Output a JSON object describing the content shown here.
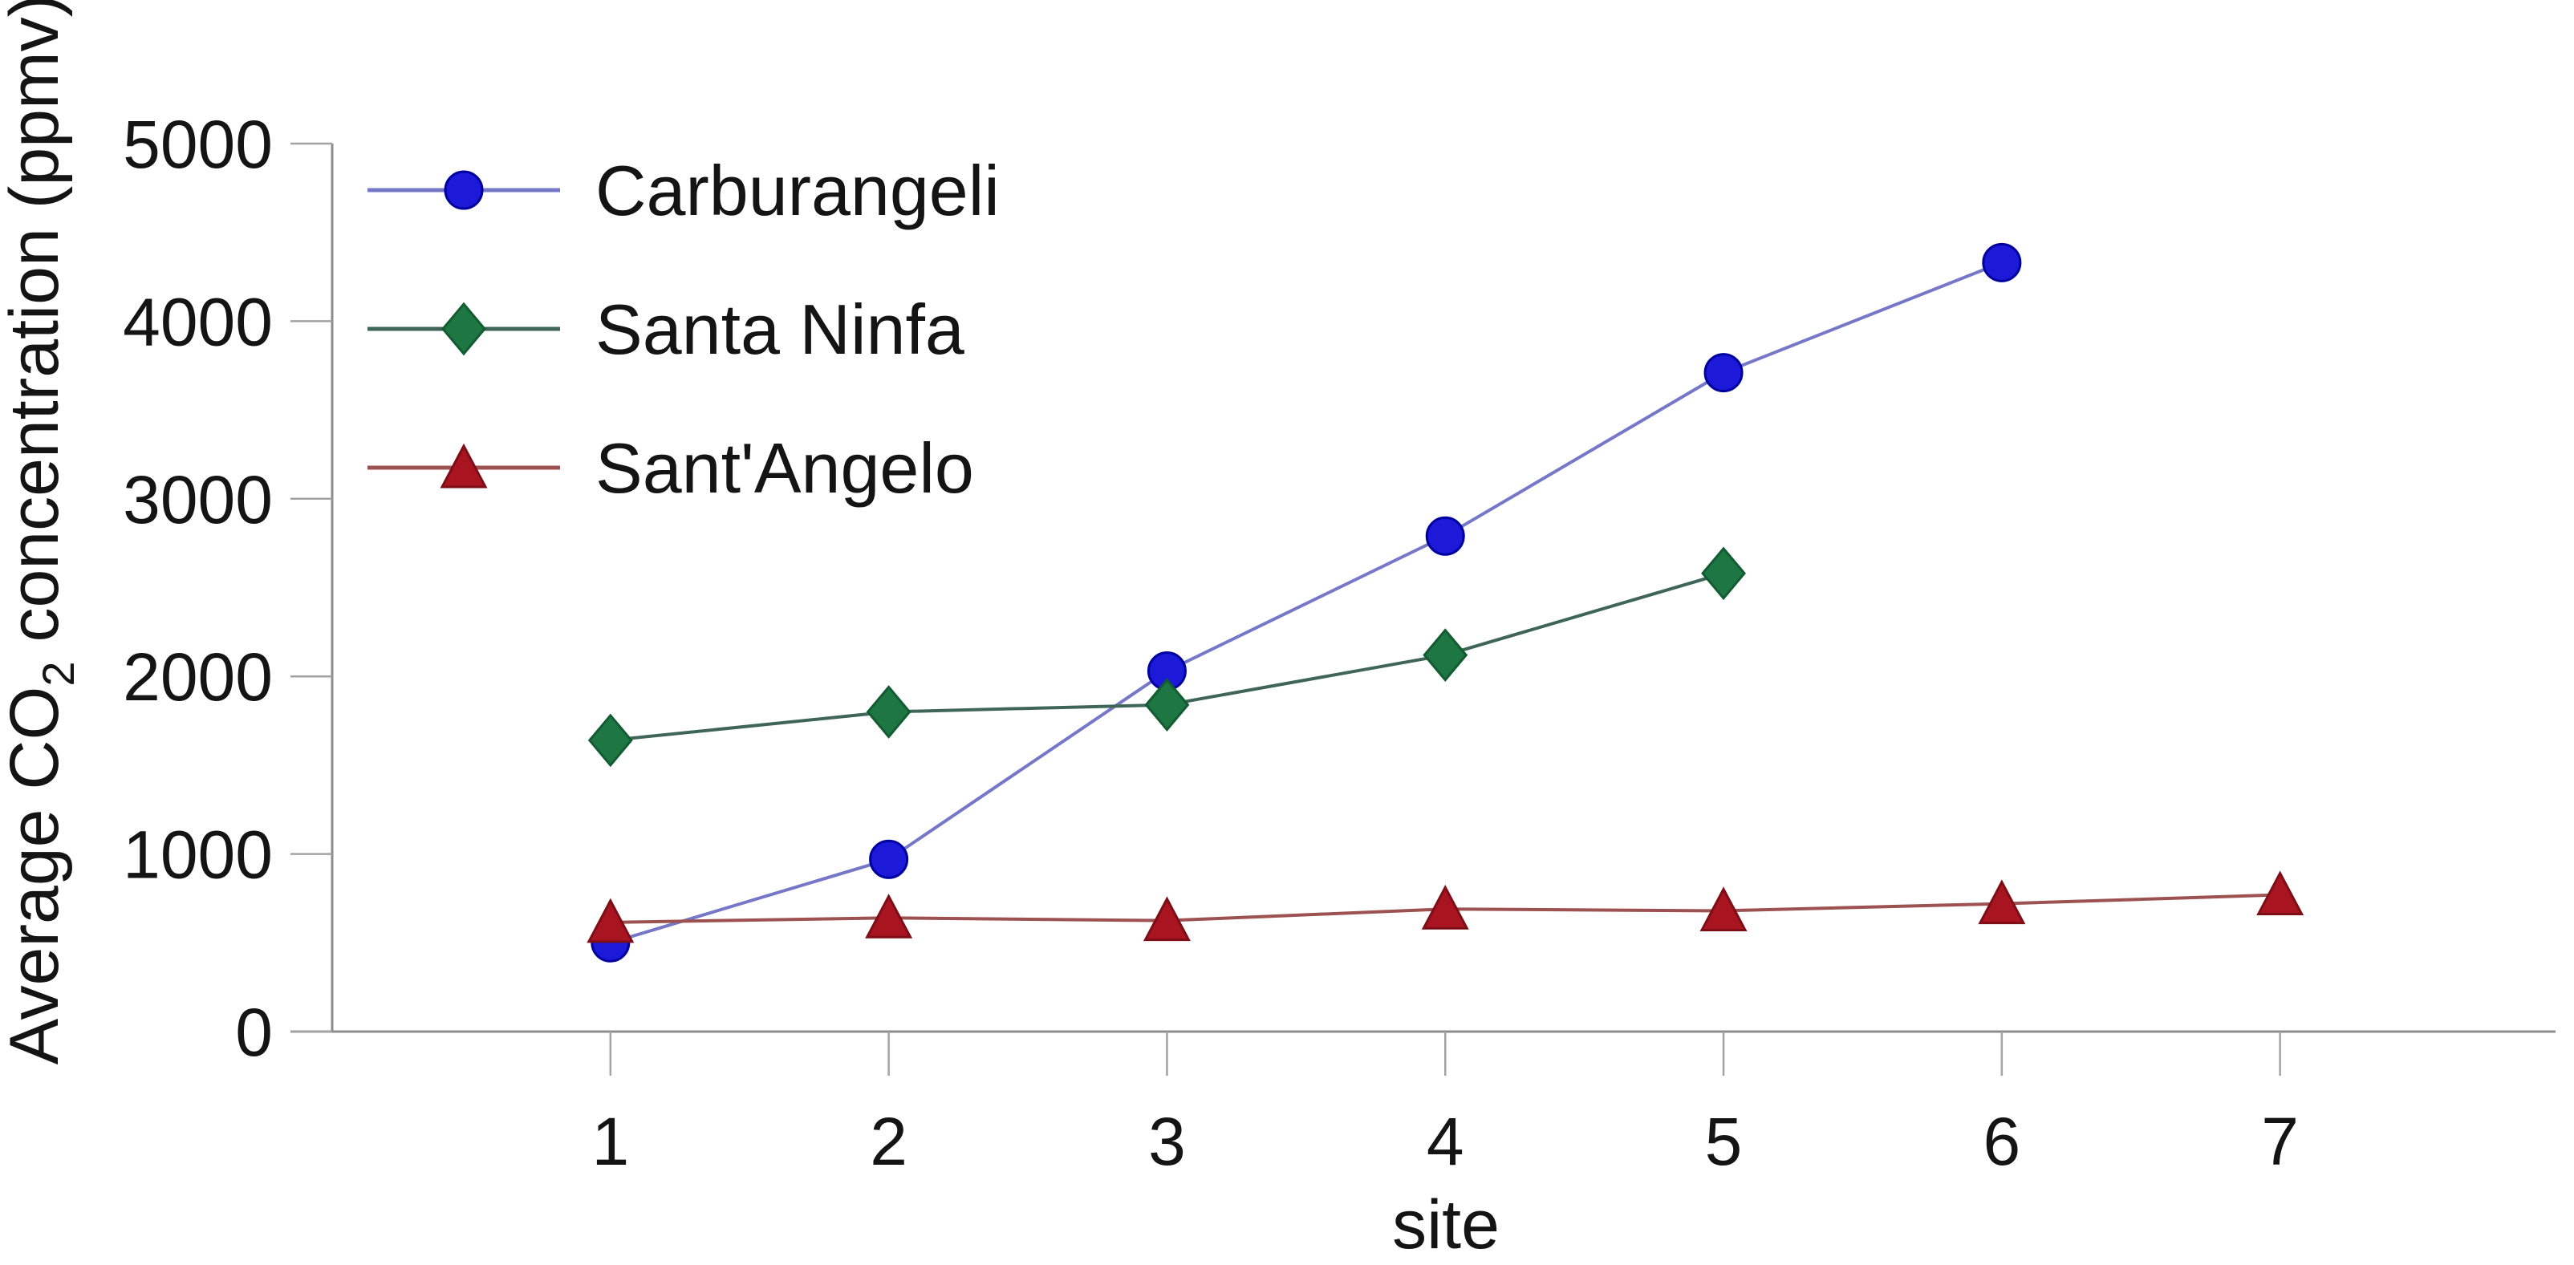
{
  "figure": {
    "background": "#ffffff",
    "text_color": "#141414",
    "axis_color": "#8c8c8c",
    "tick_color": "#a3a3a3"
  },
  "chart_data": {
    "type": "line",
    "title": "",
    "xlabel": "site",
    "ylabel": "Average CO2 concentration (ppmv)",
    "ylabel_parts": {
      "pre": "Average CO",
      "sub": "2",
      "post": " concentration (ppmv)"
    },
    "xlim": [
      0,
      7.99
    ],
    "ylim": [
      0,
      5000
    ],
    "x_ticks": [
      1,
      2,
      3,
      4,
      5,
      6,
      7
    ],
    "y_ticks": [
      0,
      1000,
      2000,
      3000,
      4000,
      5000
    ],
    "grid": false,
    "legend_position": "upper-left-inside",
    "series": [
      {
        "name": "Carburangeli",
        "marker": "circle",
        "x": [
          1,
          2,
          3,
          4,
          5,
          6
        ],
        "values": [
          500,
          970,
          2030,
          2790,
          3710,
          4330
        ],
        "line_color": "#7577c8",
        "marker_color": "#1c1ad8",
        "marker_edge": "#0000a0"
      },
      {
        "name": "Santa Ninfa",
        "marker": "diamond",
        "x": [
          1,
          2,
          3,
          4,
          5
        ],
        "values": [
          1640,
          1800,
          1840,
          2120,
          2580
        ],
        "line_color": "#3f6558",
        "marker_color": "#1e7743",
        "marker_edge": "#115c30"
      },
      {
        "name": "Sant'Angelo",
        "marker": "triangle",
        "x": [
          1,
          2,
          3,
          4,
          5,
          6,
          7
        ],
        "values": [
          615,
          640,
          625,
          690,
          680,
          720,
          770
        ],
        "line_color": "#9e5151",
        "marker_color": "#a8141f",
        "marker_edge": "#7e0d15"
      }
    ]
  }
}
